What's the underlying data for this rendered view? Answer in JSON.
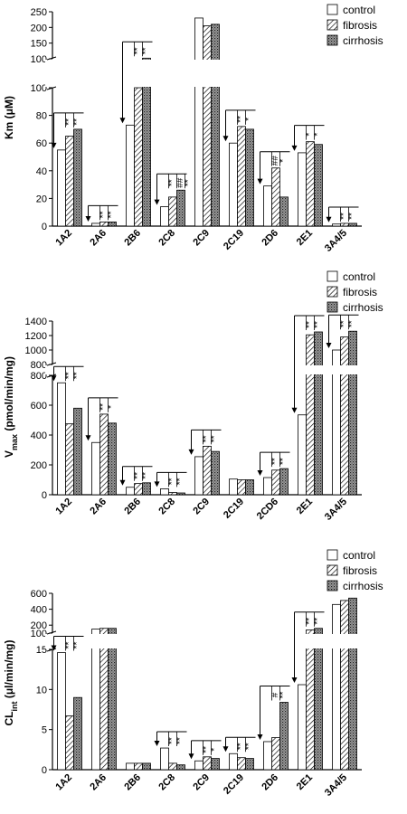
{
  "chart_data": [
    {
      "type": "bar",
      "ylabel": "Km (μM)",
      "legend": [
        "control",
        "fibrosis",
        "cirrhosis"
      ],
      "legend_position": "top-right",
      "categories": [
        "1A2",
        "2A6",
        "2B6",
        "2C8",
        "2C9",
        "2C19",
        "2D6",
        "2E1",
        "3A4/5"
      ],
      "series": [
        {
          "name": "control",
          "values": [
            55,
            2,
            73,
            14,
            230,
            60,
            29,
            53,
            1.5
          ]
        },
        {
          "name": "fibrosis",
          "values": [
            65,
            3,
            100,
            21,
            205,
            72,
            42,
            61,
            2
          ]
        },
        {
          "name": "cirrhosis",
          "values": [
            70,
            3,
            102,
            26,
            210,
            70,
            21,
            59,
            2
          ]
        }
      ],
      "y_lower_ticks": [
        "0",
        "20",
        "40",
        "60",
        "80",
        "100"
      ],
      "y_upper_ticks": [
        "100",
        "150",
        "200",
        "250"
      ],
      "y_break": [
        100,
        100
      ],
      "annotations": [
        {
          "cat": 0,
          "text": "**"
        },
        {
          "cat": 0,
          "text": "**"
        },
        {
          "cat": 1,
          "text": "**"
        },
        {
          "cat": 1,
          "text": "**"
        },
        {
          "cat": 2,
          "text": "**"
        },
        {
          "cat": 2,
          "text": "**"
        },
        {
          "cat": 3,
          "text": "**"
        },
        {
          "cat": 3,
          "text": "##"
        },
        {
          "cat": 3,
          "text": "**"
        },
        {
          "cat": 5,
          "text": "**"
        },
        {
          "cat": 5,
          "text": "*"
        },
        {
          "cat": 6,
          "text": "##"
        },
        {
          "cat": 6,
          "text": "*"
        },
        {
          "cat": 7,
          "text": "*"
        },
        {
          "cat": 7,
          "text": "*"
        },
        {
          "cat": 8,
          "text": "**"
        },
        {
          "cat": 8,
          "text": "**"
        }
      ]
    },
    {
      "type": "bar",
      "ylabel": "V",
      "ylabel_sub": "max",
      "ylabel_rest": " (pmol/min/mg)",
      "legend": [
        "control",
        "fibrosis",
        "cirrhosis"
      ],
      "legend_position": "top-right",
      "categories": [
        "1A2",
        "2A6",
        "2B6",
        "2C8",
        "2C9",
        "2C19",
        "2CD6",
        "2E1",
        "3A4/5"
      ],
      "series": [
        {
          "name": "control",
          "values": [
            750,
            350,
            50,
            40,
            255,
            105,
            115,
            535,
            1000
          ]
        },
        {
          "name": "fibrosis",
          "values": [
            475,
            540,
            75,
            15,
            325,
            100,
            165,
            1210,
            1180
          ]
        },
        {
          "name": "cirrhosis",
          "values": [
            580,
            480,
            80,
            12,
            290,
            100,
            175,
            1250,
            1260
          ]
        }
      ],
      "y_lower_ticks": [
        "0",
        "200",
        "400",
        "600",
        "800"
      ],
      "y_upper_ticks": [
        "800",
        "1000",
        "1200",
        "1400"
      ],
      "y_break": [
        800,
        800
      ],
      "annotations": [
        {
          "cat": 0,
          "text": "**"
        },
        {
          "cat": 0,
          "text": "**"
        },
        {
          "cat": 1,
          "text": "**"
        },
        {
          "cat": 1,
          "text": "*"
        },
        {
          "cat": 2,
          "text": "**"
        },
        {
          "cat": 2,
          "text": "**"
        },
        {
          "cat": 3,
          "text": "**"
        },
        {
          "cat": 3,
          "text": "**"
        },
        {
          "cat": 4,
          "text": "**"
        },
        {
          "cat": 4,
          "text": "**"
        },
        {
          "cat": 6,
          "text": "**"
        },
        {
          "cat": 6,
          "text": "**"
        },
        {
          "cat": 7,
          "text": "**"
        },
        {
          "cat": 7,
          "text": "**"
        },
        {
          "cat": 8,
          "text": "**"
        },
        {
          "cat": 8,
          "text": "**"
        }
      ]
    },
    {
      "type": "bar",
      "ylabel": "CL",
      "ylabel_sub": "int",
      "ylabel_rest": " (μl/min/mg)",
      "legend": [
        "control",
        "fibrosis",
        "cirrhosis"
      ],
      "legend_position": "top-right",
      "categories": [
        "1A2",
        "2A6",
        "2B6",
        "2C8",
        "2C9",
        "2C19",
        "2D6",
        "2E1",
        "3A4/5"
      ],
      "series": [
        {
          "name": "control",
          "values": [
            14.6,
            150,
            0.8,
            2.7,
            1.1,
            2,
            3.5,
            10.6,
            460
          ]
        },
        {
          "name": "fibrosis",
          "values": [
            6.7,
            160,
            0.8,
            0.8,
            1.6,
            1.5,
            4,
            140,
            510
          ]
        },
        {
          "name": "cirrhosis",
          "values": [
            9,
            160,
            0.8,
            0.6,
            1.4,
            1.4,
            8.4,
            160,
            540
          ]
        }
      ],
      "y_lower_ticks": [
        "0",
        "5",
        "10",
        "15"
      ],
      "y_upper_ticks": [
        "100",
        "200",
        "400",
        "600"
      ],
      "y_break": [
        15,
        100
      ],
      "annotations": [
        {
          "cat": 0,
          "text": "**"
        },
        {
          "cat": 0,
          "text": "**"
        },
        {
          "cat": 3,
          "text": "**"
        },
        {
          "cat": 3,
          "text": "**"
        },
        {
          "cat": 4,
          "text": "**"
        },
        {
          "cat": 4,
          "text": "*"
        },
        {
          "cat": 5,
          "text": "**"
        },
        {
          "cat": 5,
          "text": "**"
        },
        {
          "cat": 6,
          "text": "#"
        },
        {
          "cat": 6,
          "text": "**"
        },
        {
          "cat": 7,
          "text": "**"
        },
        {
          "cat": 7,
          "text": "**"
        }
      ]
    }
  ],
  "colors": {
    "control": "#ffffff",
    "fibrosis": "hatch",
    "cirrhosis": "dotted-gray"
  }
}
